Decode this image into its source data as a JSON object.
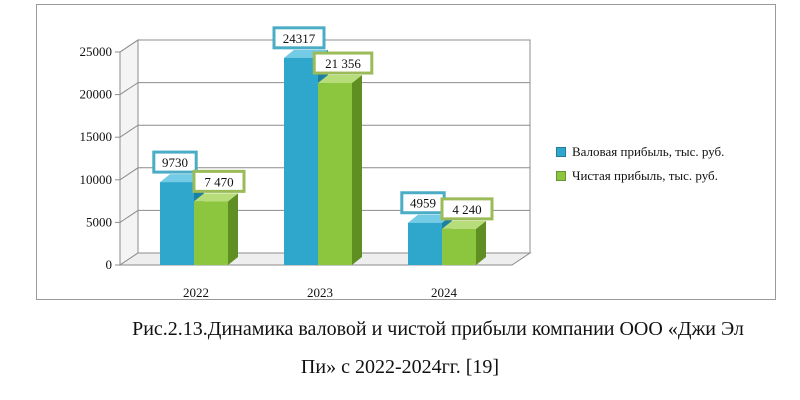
{
  "chart_data": {
    "type": "bar",
    "categories": [
      "2022",
      "2023",
      "2024"
    ],
    "series": [
      {
        "name": "Валовая прибыль, тыс. руб.",
        "values": [
          9730,
          24317,
          4959
        ],
        "labels": [
          "9730",
          "24317",
          "4959"
        ],
        "color": "#2fa7cc",
        "side": "#1f7fa0",
        "top": "#74cbe6",
        "border": "#4bacc6"
      },
      {
        "name": "Чистая прибыль, тыс. руб.",
        "values": [
          7470,
          21356,
          4240
        ],
        "labels": [
          "7 470",
          "21 356",
          "4 240"
        ],
        "color": "#8cc63f",
        "side": "#5f8f22",
        "top": "#b6dd7a",
        "border": "#9bbb59"
      }
    ],
    "y_ticks": [
      "0",
      "5000",
      "10000",
      "15000",
      "20000",
      "25000"
    ],
    "ylim": [
      0,
      25000
    ],
    "legend_position": "right",
    "title": "",
    "xlabel": "",
    "ylabel": ""
  },
  "caption": {
    "line1": "Рис.2.13.Динамика валовой и чистой прибыли компании ООО «Джи Эл",
    "line2": "Пи» с 2022-2024гг. [19]"
  }
}
